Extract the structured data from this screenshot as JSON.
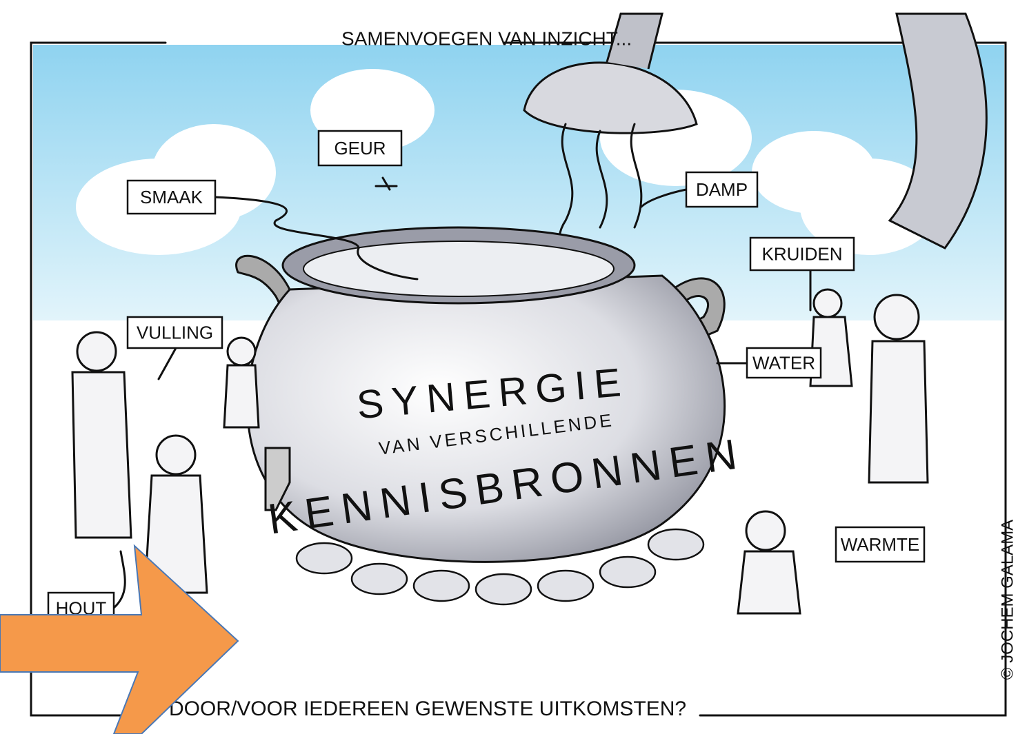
{
  "header": {
    "title": "SAMENVOEGEN VAN INZICHT..."
  },
  "pot": {
    "lines": [
      "SYNERGIE",
      "VAN VERSCHILLENDE",
      "KENNISBRONNEN"
    ]
  },
  "labels": [
    "GEUR",
    "SMAAK",
    "DAMP",
    "KRUIDEN",
    "VULLING",
    "WATER",
    "WARMTE",
    "HOUT"
  ],
  "footer": {
    "question": "DOOR/VOOR IEDEREEN GEWENSTE UITKOMSTEN?"
  },
  "credit": "© JOCHEM GALAMA"
}
